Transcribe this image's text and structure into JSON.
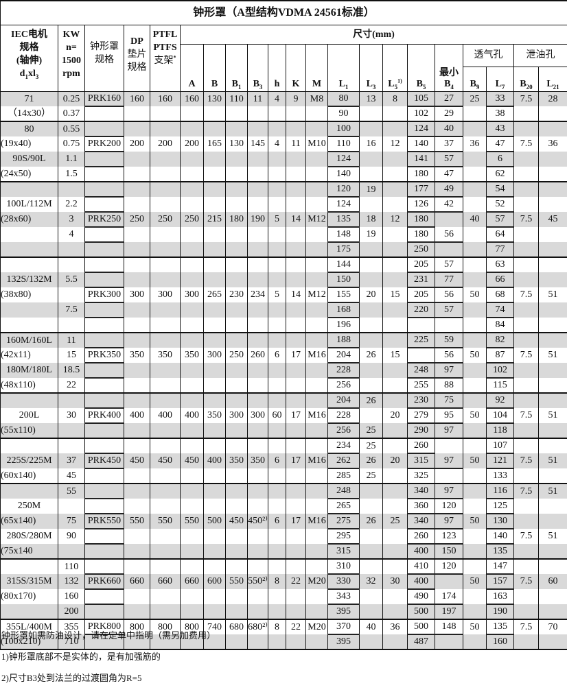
{
  "title": "钟形罩（A型结构VDMA 24561标准）",
  "header": {
    "iec": [
      "IEC电机",
      "规格",
      "(轴伸)"
    ],
    "iec_d": "d",
    "iec_d_sub": "1",
    "iec_x": "xl",
    "iec_x_sub": "3",
    "kw": [
      "KW",
      "n=",
      "1500",
      "rpm"
    ],
    "bell": [
      "钟形罩",
      "规格"
    ],
    "dp": [
      "DP",
      "垫片",
      "规格"
    ],
    "ptfl": [
      "PTFL",
      "PTFS",
      "支架"
    ],
    "ptfl_sup": "*",
    "dims": "尺寸(mm)",
    "min": "最小",
    "vent": "透气孔",
    "drain": "泄油孔",
    "cols": [
      {
        "m": "A",
        "s": ""
      },
      {
        "m": "B",
        "s": ""
      },
      {
        "m": "B",
        "s": "1"
      },
      {
        "m": "B",
        "s": "3"
      },
      {
        "m": "h",
        "s": ""
      },
      {
        "m": "K",
        "s": ""
      },
      {
        "m": "M",
        "s": ""
      },
      {
        "m": "L",
        "s": "1"
      },
      {
        "m": "L",
        "s": "3"
      },
      {
        "m": "L",
        "s": "5",
        "sup": "1)"
      },
      {
        "m": "B",
        "s": "5"
      },
      {
        "m": "B",
        "s": "4"
      },
      {
        "m": "B",
        "s": "9"
      },
      {
        "m": "L",
        "s": "7"
      },
      {
        "m": "B",
        "s": "20"
      },
      {
        "m": "L",
        "s": "21"
      }
    ]
  },
  "groups": [
    [
      [
        "71",
        "0.25",
        "PRK160",
        "160",
        "160",
        "160",
        "130",
        "110",
        "11",
        "4",
        "9",
        "M8",
        "80",
        "13",
        "8",
        "105",
        "27",
        "25",
        "33",
        "7.5",
        "28"
      ],
      [
        "（14x30）",
        "0.37",
        "",
        "",
        "",
        "",
        "",
        "",
        "",
        "",
        "",
        "",
        "90",
        "",
        "",
        "102",
        "29",
        "",
        "38",
        "",
        ""
      ]
    ],
    [
      [
        "80",
        "0.55",
        "",
        "",
        "",
        "",
        "",
        "",
        "",
        "",
        "",
        "",
        "100",
        "",
        "",
        "124",
        "40",
        "",
        "43",
        "",
        ""
      ],
      [
        "(19x40)",
        "0.75",
        "PRK200",
        "200",
        "200",
        "200",
        "165",
        "130",
        "145",
        "4",
        "11",
        "M10",
        "110",
        "16",
        "12",
        "140",
        "37",
        "36",
        "47",
        "7.5",
        "36"
      ],
      [
        "90S/90L",
        "1.1",
        "",
        "",
        "",
        "",
        "",
        "",
        "",
        "",
        "",
        "",
        "124",
        "",
        "",
        "141",
        "57",
        "",
        "6",
        "",
        ""
      ],
      [
        "(24x50)",
        "1.5",
        "",
        "",
        "",
        "",
        "",
        "",
        "",
        "",
        "",
        "",
        "140",
        "",
        "",
        "180",
        "47",
        "",
        "62",
        "",
        ""
      ]
    ],
    [
      [
        "",
        "",
        "",
        "",
        "",
        "",
        "",
        "",
        "",
        "",
        "",
        "",
        "120",
        "19",
        "",
        "177",
        "49",
        "",
        "54",
        "",
        ""
      ],
      [
        "100L/112M",
        "2.2",
        "",
        "",
        "",
        "",
        "",
        "",
        "",
        "",
        "",
        "",
        "124",
        "",
        "",
        "126",
        "42",
        "",
        "52",
        "",
        ""
      ],
      [
        "(28x60)",
        "3",
        "PRK250",
        "250",
        "250",
        "250",
        "215",
        "180",
        "190",
        "5",
        "14",
        "M12",
        "135",
        "18",
        "12",
        "180",
        "",
        "40",
        "57",
        "7.5",
        "45"
      ],
      [
        "",
        "4",
        "",
        "",
        "",
        "",
        "",
        "",
        "",
        "",
        "",
        "",
        "148",
        "19",
        "",
        "180",
        "56",
        "",
        "64",
        "",
        ""
      ],
      [
        "",
        "",
        "",
        "",
        "",
        "",
        "",
        "",
        "",
        "",
        "",
        "",
        "175",
        "",
        "",
        "250",
        "",
        "",
        "77",
        "",
        ""
      ]
    ],
    [
      [
        "",
        "",
        "",
        "",
        "",
        "",
        "",
        "",
        "",
        "",
        "",
        "",
        "144",
        "",
        "",
        "205",
        "57",
        "",
        "63",
        "",
        ""
      ],
      [
        "132S/132M",
        "5.5",
        "",
        "",
        "",
        "",
        "",
        "",
        "",
        "",
        "",
        "",
        "150",
        "",
        "",
        "231",
        "77",
        "",
        "66",
        "",
        ""
      ],
      [
        "(38x80)",
        "",
        "PRK300",
        "300",
        "300",
        "300",
        "265",
        "230",
        "234",
        "5",
        "14",
        "M12",
        "155",
        "20",
        "15",
        "205",
        "56",
        "50",
        "68",
        "7.5",
        "51"
      ],
      [
        "",
        "7.5",
        "",
        "",
        "",
        "",
        "",
        "",
        "",
        "",
        "",
        "",
        "168",
        "",
        "",
        "220",
        "57",
        "",
        "74",
        "",
        ""
      ],
      [
        "",
        "",
        "",
        "",
        "",
        "",
        "",
        "",
        "",
        "",
        "",
        "",
        "196",
        "",
        "",
        "",
        "",
        "",
        "84",
        "",
        ""
      ]
    ],
    [
      [
        "160M/160L",
        "11",
        "",
        "",
        "",
        "",
        "",
        "",
        "",
        "",
        "",
        "",
        "188",
        "",
        "",
        "225",
        "59",
        "",
        "82",
        "",
        ""
      ],
      [
        "(42x11)",
        "15",
        "PRK350",
        "350",
        "350",
        "350",
        "300",
        "250",
        "260",
        "6",
        "17",
        "M16",
        "204",
        "26",
        "15",
        "",
        "56",
        "50",
        "87",
        "7.5",
        "51"
      ],
      [
        "180M/180L",
        "18.5",
        "",
        "",
        "",
        "",
        "",
        "",
        "",
        "",
        "",
        "",
        "228",
        "",
        "",
        "248",
        "97",
        "",
        "102",
        "",
        ""
      ],
      [
        "(48x110)",
        "22",
        "",
        "",
        "",
        "",
        "",
        "",
        "",
        "",
        "",
        "",
        "256",
        "",
        "",
        "255",
        "88",
        "",
        "115",
        "",
        ""
      ]
    ],
    [
      [
        "",
        "",
        "",
        "",
        "",
        "",
        "",
        "",
        "",
        "",
        "",
        "",
        "204",
        "26",
        "",
        "230",
        "75",
        "",
        "92",
        "",
        ""
      ],
      [
        "200L",
        "30",
        "PRK400",
        "400",
        "400",
        "400",
        "350",
        "300",
        "300",
        "60",
        "17",
        "M16",
        "228",
        "",
        "20",
        "279",
        "95",
        "50",
        "104",
        "7.5",
        "51"
      ],
      [
        "(55x110)",
        "",
        "",
        "",
        "",
        "",
        "",
        "",
        "",
        "",
        "",
        "",
        "256",
        "25",
        "",
        "290",
        "97",
        "",
        "118",
        "",
        ""
      ]
    ],
    [
      [
        "",
        "",
        "",
        "",
        "",
        "",
        "",
        "",
        "",
        "",
        "",
        "",
        "234",
        "25",
        "",
        "260",
        "",
        "",
        "107",
        "",
        ""
      ],
      [
        "225S/225M",
        "37",
        "PRK450",
        "450",
        "450",
        "450",
        "400",
        "350",
        "350",
        "6",
        "17",
        "M16",
        "262",
        "26",
        "20",
        "315",
        "97",
        "50",
        "121",
        "7.5",
        "51"
      ],
      [
        "(60x140)",
        "45",
        "",
        "",
        "",
        "",
        "",
        "",
        "",
        "",
        "",
        "",
        "285",
        "25",
        "",
        "325",
        "",
        "",
        "133",
        "",
        ""
      ]
    ],
    [
      [
        "",
        "55",
        "",
        "",
        "",
        "",
        "",
        "",
        "",
        "",
        "",
        "",
        "248",
        "",
        "",
        "340",
        "97",
        "",
        "116",
        "7.5",
        "51"
      ],
      [
        "250M",
        "",
        "",
        "",
        "",
        "",
        "",
        "",
        "",
        "",
        "",
        "",
        "265",
        "",
        "",
        "360",
        "120",
        "",
        "125",
        "",
        ""
      ],
      [
        "(65x140)",
        "75",
        "PRK550",
        "550",
        "550",
        "550",
        "500",
        "450",
        "450²⁾",
        "6",
        "17",
        "M16",
        "275",
        "26",
        "25",
        "340",
        "97",
        "50",
        "130",
        "",
        ""
      ],
      [
        "280S/280M",
        "90",
        "",
        "",
        "",
        "",
        "",
        "",
        "",
        "",
        "",
        "",
        "295",
        "",
        "",
        "260",
        "123",
        "",
        "140",
        "7.5",
        "51"
      ],
      [
        "(75x140",
        "",
        "",
        "",
        "",
        "",
        "",
        "",
        "",
        "",
        "",
        "",
        "315",
        "",
        "",
        "400",
        "150",
        "",
        "135",
        "",
        ""
      ]
    ],
    [
      [
        "",
        "110",
        "",
        "",
        "",
        "",
        "",
        "",
        "",
        "",
        "",
        "",
        "310",
        "",
        "",
        "410",
        "120",
        "",
        "147",
        "",
        ""
      ],
      [
        "315S/315M",
        "132",
        "PRK660",
        "660",
        "660",
        "660",
        "600",
        "550",
        "550²⁾",
        "8",
        "22",
        "M20",
        "330",
        "32",
        "30",
        "400",
        "",
        "50",
        "157",
        "7.5",
        "60"
      ],
      [
        "(80x170)",
        "160",
        "",
        "",
        "",
        "",
        "",
        "",
        "",
        "",
        "",
        "",
        "343",
        "",
        "",
        "490",
        "174",
        "",
        "163",
        "",
        ""
      ],
      [
        "",
        "200",
        "",
        "",
        "",
        "",
        "",
        "",
        "",
        "",
        "",
        "",
        "395",
        "",
        "",
        "500",
        "197",
        "",
        "190",
        "",
        ""
      ]
    ],
    [
      [
        "355L/400M",
        "355",
        "PRK800",
        "800",
        "800",
        "800",
        "740",
        "680",
        "680²⁾",
        "8",
        "22",
        "M20",
        "370",
        "40",
        "36",
        "500",
        "148",
        "50",
        "135",
        "7.5",
        "70"
      ],
      [
        "(100x210)",
        "710",
        "",
        "",
        "",
        "",
        "",
        "",
        "",
        "",
        "",
        "",
        "395",
        "",
        "",
        "487",
        "",
        "",
        "160",
        "",
        ""
      ]
    ]
  ],
  "notes": [
    "钟形罩如需防油设计，请在定单中指明（需另加费用）",
    "1)钟形罩底部不是实体的，是有加强筋的",
    "2)尺寸B3处到法兰的过渡圆角为R=5"
  ],
  "colors": {
    "stripe": "#d9d9d9",
    "border": "#111111"
  }
}
